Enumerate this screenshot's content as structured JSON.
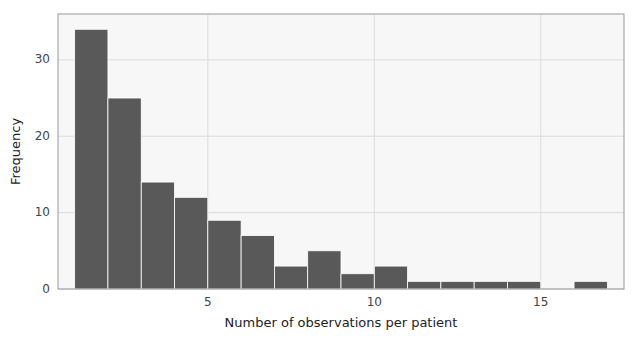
{
  "chart_data": {
    "type": "histogram",
    "x_label": "Number of observations per patient",
    "y_label": "Frequency",
    "bins": [
      1,
      2,
      3,
      4,
      5,
      6,
      7,
      8,
      9,
      10,
      11,
      12,
      13,
      14,
      15,
      16,
      17
    ],
    "values": [
      34,
      25,
      14,
      12,
      9,
      7,
      3,
      5,
      2,
      3,
      1,
      1,
      1,
      1,
      0,
      1
    ],
    "color": "#595959",
    "xlim": [
      0.5,
      17.5
    ],
    "xticks": [
      5,
      10,
      15
    ],
    "ylim": [
      0,
      36
    ],
    "yticks": [
      0,
      10,
      20,
      30
    ],
    "grid": true
  }
}
